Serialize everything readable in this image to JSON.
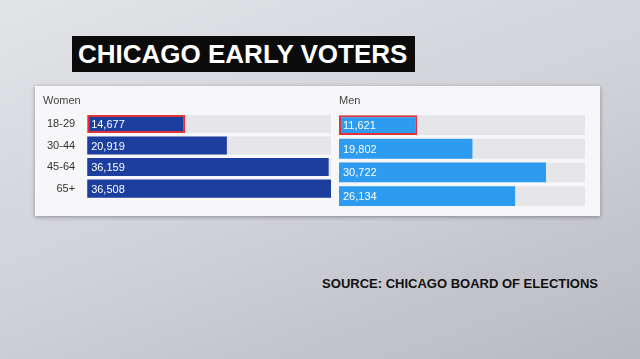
{
  "title": "CHICAGO EARLY VOTERS",
  "source": "SOURCE: CHICAGO BOARD OF ELECTIONS",
  "chart_data": {
    "type": "bar",
    "orientation": "horizontal",
    "categories": [
      "18-29",
      "30-44",
      "45-64",
      "65+"
    ],
    "series": [
      {
        "name": "Women",
        "color": "#1c3f9f",
        "values": [
          14677,
          20919,
          36159,
          36508
        ],
        "value_labels": [
          "14,677",
          "20,919",
          "36,159",
          "36,508"
        ]
      },
      {
        "name": "Men",
        "color": "#2c9bf0",
        "values": [
          11621,
          19802,
          30722,
          26134
        ],
        "value_labels": [
          "11,621",
          "19,802",
          "30,722",
          "26,134"
        ]
      }
    ],
    "xlim": [
      0,
      36508
    ],
    "grid": false,
    "data_labels": true,
    "tick_labels": "y"
  }
}
